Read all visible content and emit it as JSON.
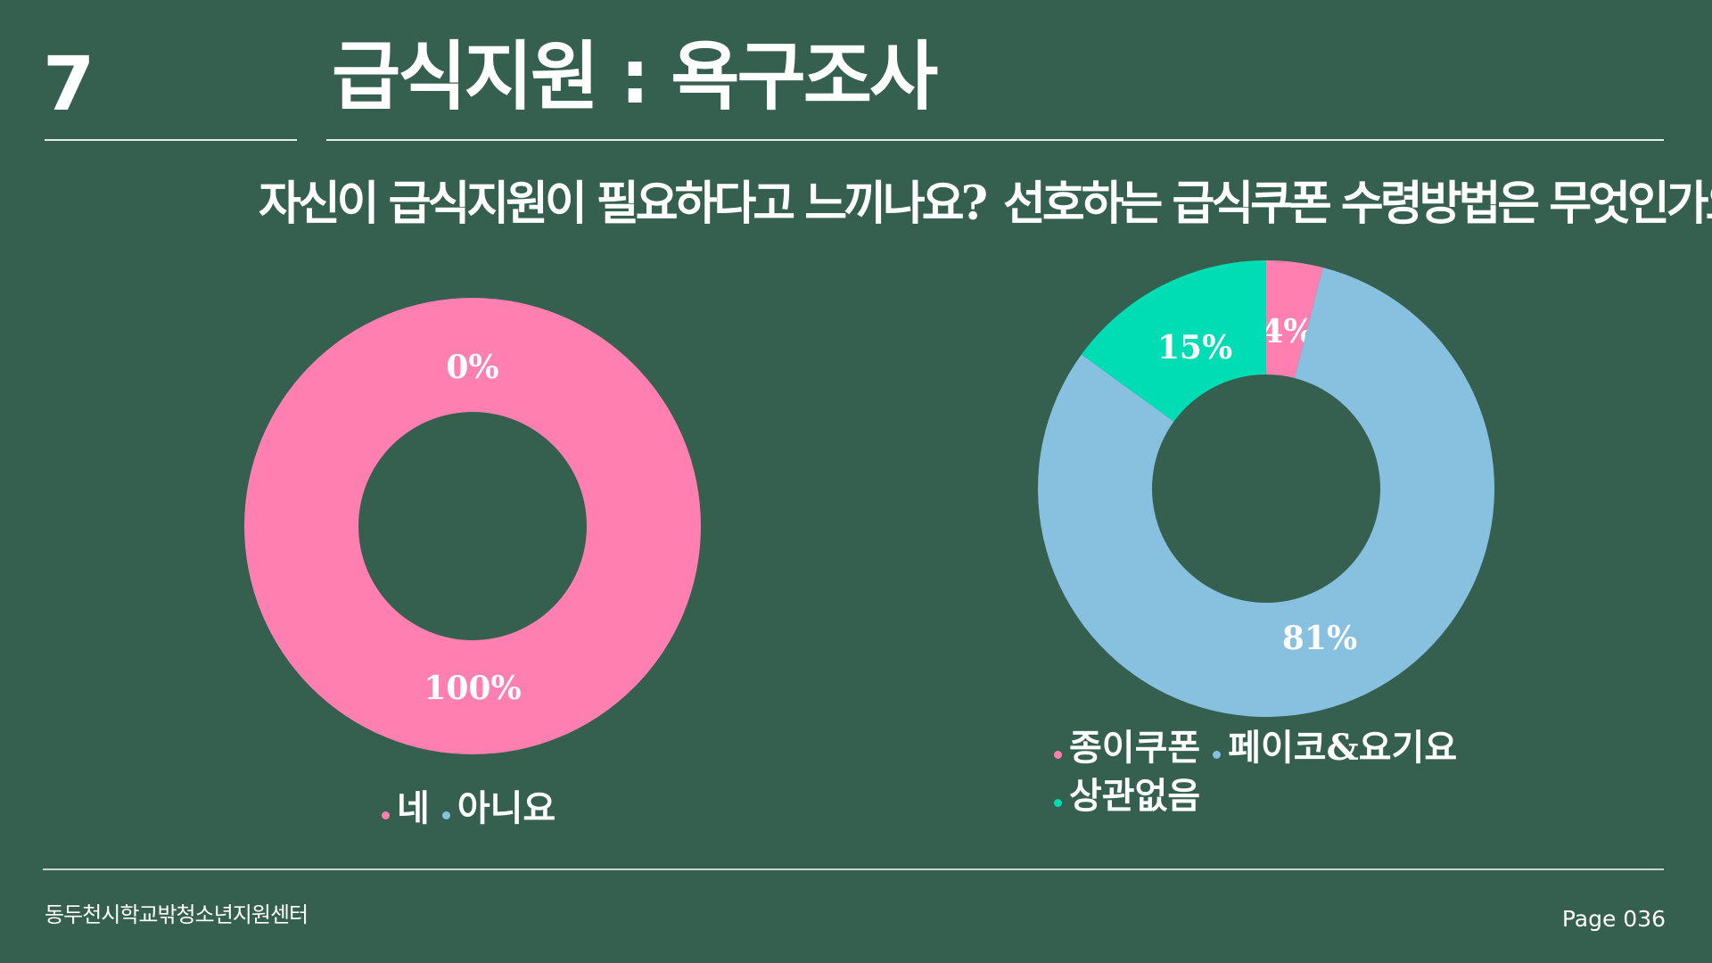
{
  "slide": {
    "number": "7",
    "title": "급식지원 : 욕구조사"
  },
  "colors": {
    "background": "#356050",
    "pink": "#ff7fb0",
    "blue": "#88c0df",
    "teal": "#00ddb4"
  },
  "chart_data": [
    {
      "type": "pie",
      "title": "자신이 급식지원이 필요하다고 느끼나요?",
      "categories": [
        "네",
        "아니요"
      ],
      "values": [
        100,
        0
      ],
      "data_labels": [
        "100%",
        "0%"
      ],
      "colors": [
        "#ff7fb0",
        "#88c0df"
      ],
      "donut": true,
      "legend_position": "bottom"
    },
    {
      "type": "pie",
      "title": "선호하는 급식쿠폰 수령방법은 무엇인가요?",
      "categories": [
        "종이쿠폰",
        "페이코&요기요",
        "상관없음"
      ],
      "values": [
        4,
        81,
        15
      ],
      "data_labels": [
        "4%",
        "81%",
        "15%"
      ],
      "colors": [
        "#ff7fb0",
        "#88c0df",
        "#00ddb4"
      ],
      "donut": true,
      "legend_position": "bottom"
    }
  ],
  "footer": {
    "organization": "동두천시학교밖청소년지원센터",
    "page": "Page 036"
  }
}
